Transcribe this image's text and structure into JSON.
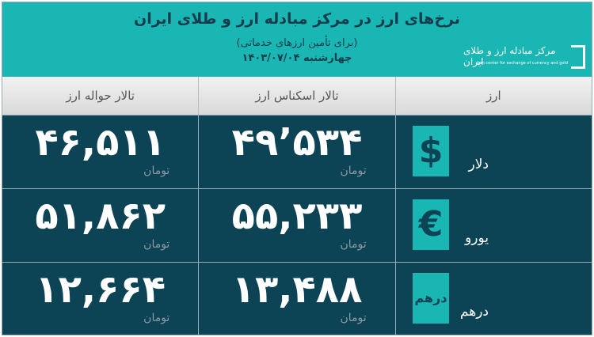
{
  "header": {
    "title": "نرخ‌های ارز در مرکز مبادله ارز و طلای ایران",
    "subtitle": "(برای تأمین ارزهای خدماتی)",
    "date": "چهارشنبه ۱۴۰۳/۰۷/۰۴"
  },
  "logo": {
    "fa": "مرکز مبادله ارز و طلای ایران",
    "en": "Iran center for exchange of currency and gold"
  },
  "columns": [
    "ارز",
    "تالار اسکناس ارز",
    "تالار حواله ارز"
  ],
  "unit": "تومان",
  "rows": [
    {
      "currency": "دلار",
      "icon": "$",
      "cash": "۴۹’۵۳۴",
      "transfer": "۴۶,۵۱۱"
    },
    {
      "currency": "یورو",
      "icon": "€",
      "cash": "۵۵,۲۳۳",
      "transfer": "۵۱,۸۶۲"
    },
    {
      "currency": "درهم",
      "icon": "درهم",
      "cash": "۱۳,۴۸۸",
      "transfer": "۱۲,۶۶۴"
    }
  ],
  "colors": {
    "teal": "#19b6b4",
    "navy": "#0c4456"
  }
}
